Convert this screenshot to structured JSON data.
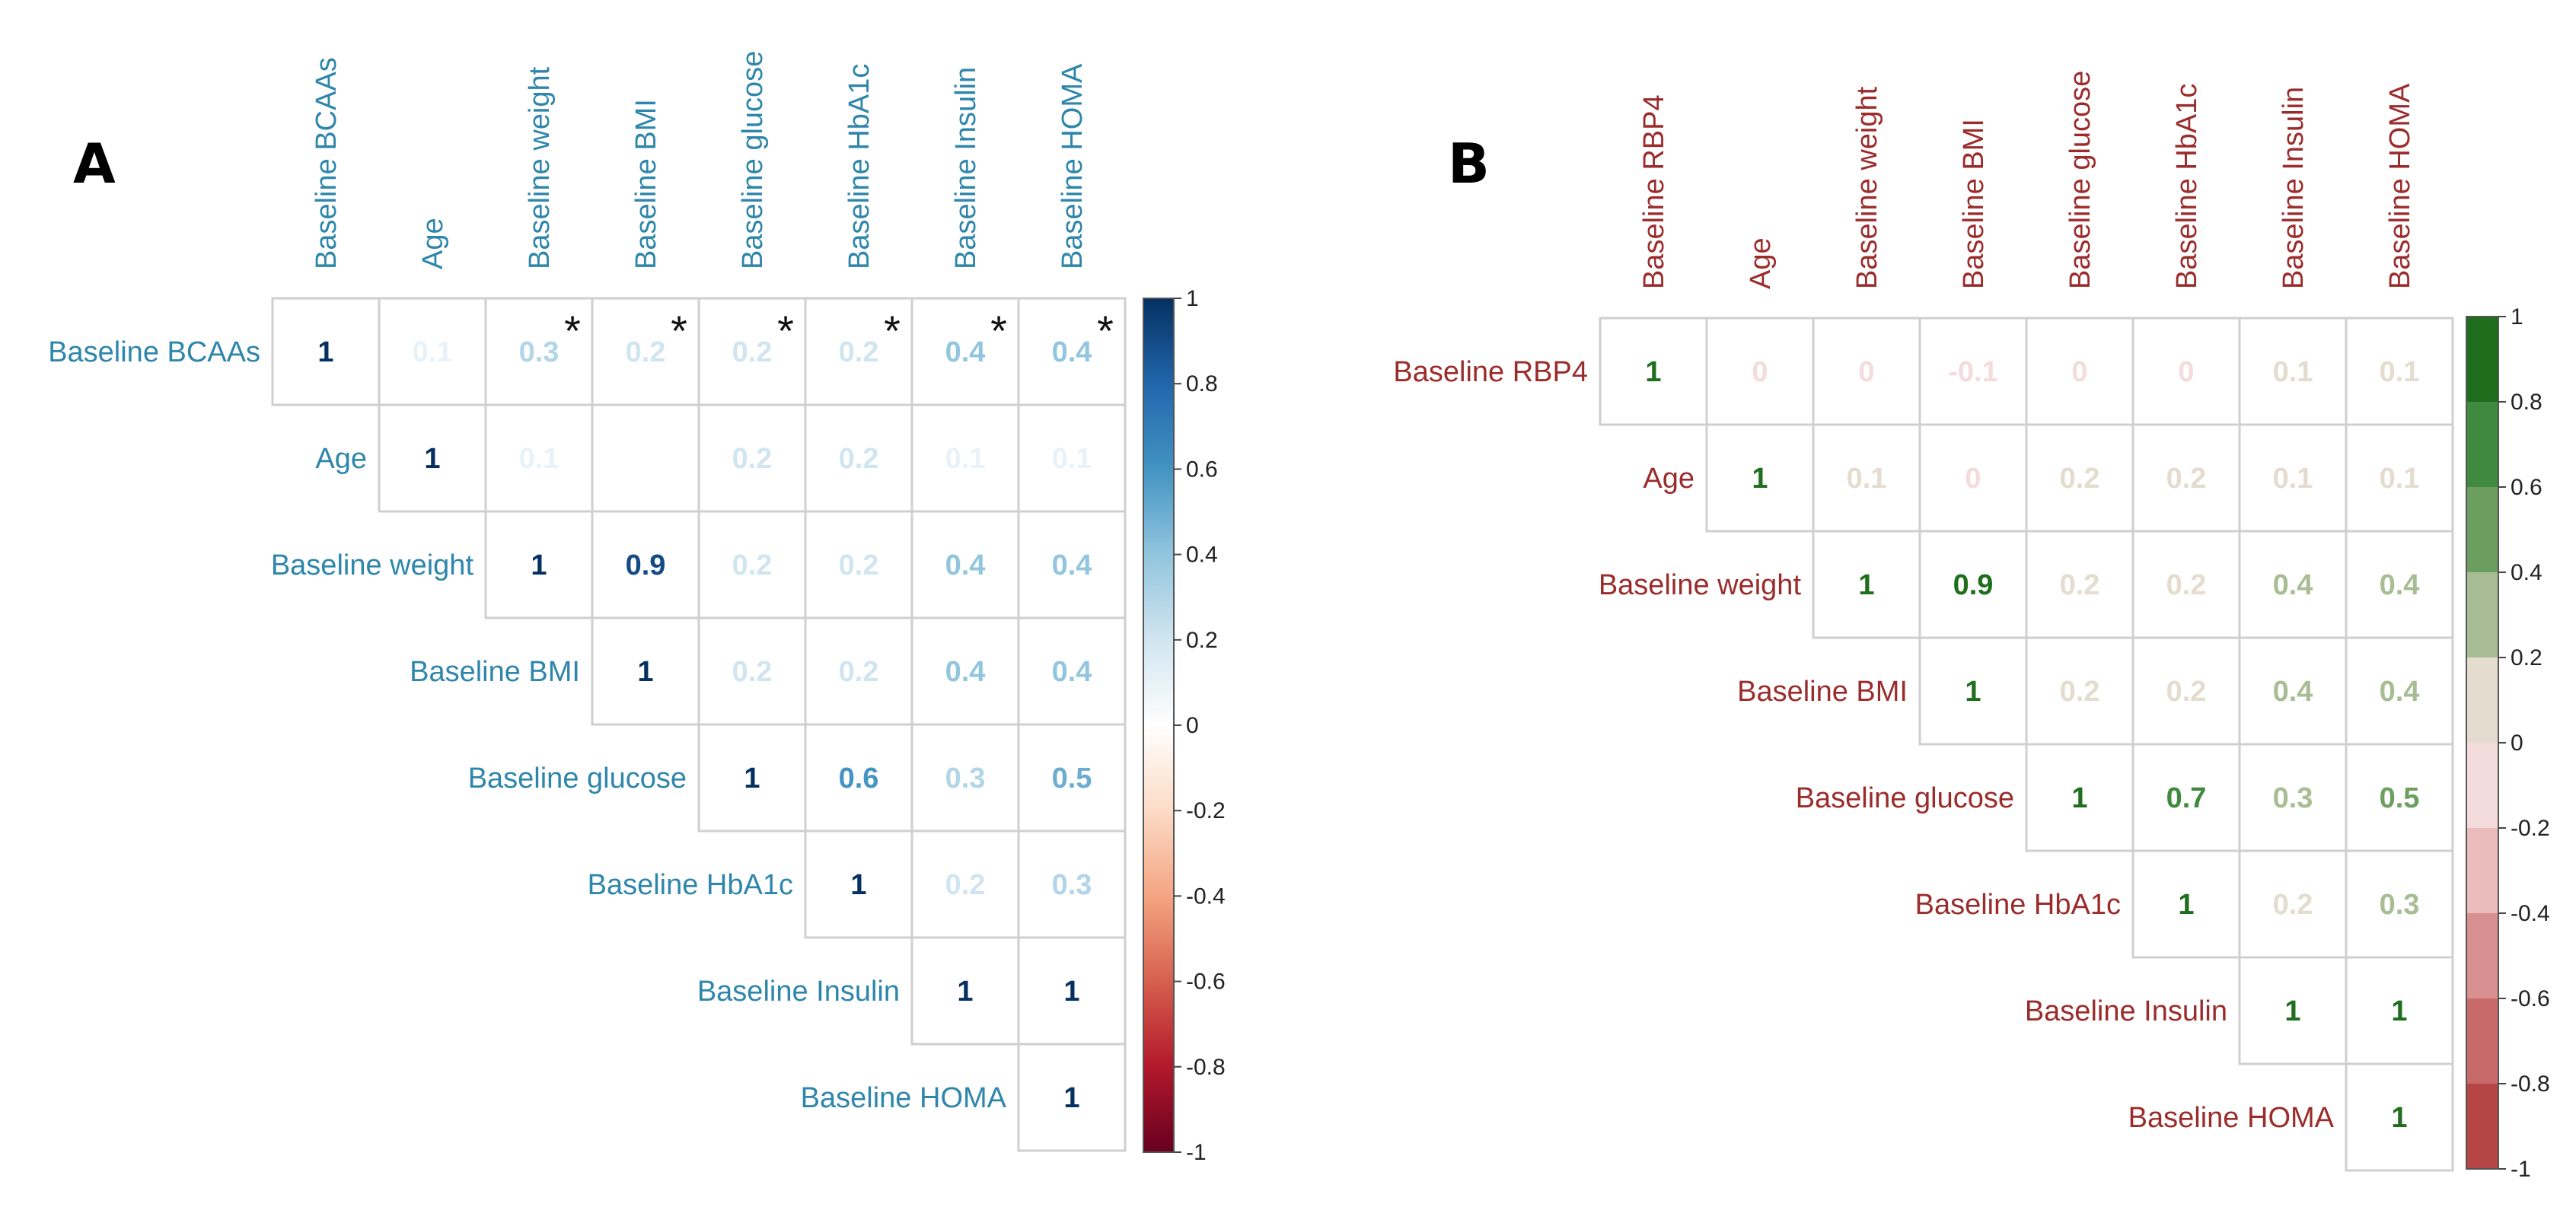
{
  "chart_data": [
    {
      "panel_label": "A",
      "type": "heatmap",
      "subtype": "correlation-matrix-upper-triangle",
      "palette": "blue-white-red",
      "label_color": "#2e86ab",
      "variables": [
        "Baseline BCAAs",
        "Age",
        "Baseline weight",
        "Baseline BMI",
        "Baseline glucose",
        "Baseline HbA1c",
        "Baseline Insulin",
        "Baseline HOMA"
      ],
      "values": [
        [
          1,
          0.1,
          0.3,
          0.2,
          0.2,
          0.2,
          0.4,
          0.4
        ],
        [
          null,
          1,
          0.1,
          0,
          0.2,
          0.2,
          0.1,
          0.1
        ],
        [
          null,
          null,
          1,
          0.9,
          0.2,
          0.2,
          0.4,
          0.4
        ],
        [
          null,
          null,
          null,
          1,
          0.2,
          0.2,
          0.4,
          0.4
        ],
        [
          null,
          null,
          null,
          null,
          1,
          0.6,
          0.3,
          0.5
        ],
        [
          null,
          null,
          null,
          null,
          null,
          1,
          0.2,
          0.3
        ],
        [
          null,
          null,
          null,
          null,
          null,
          null,
          1,
          1
        ],
        [
          null,
          null,
          null,
          null,
          null,
          null,
          null,
          1
        ]
      ],
      "labels": [
        [
          "1",
          "0.1",
          "0.3",
          "0.2",
          "0.2",
          "0.2",
          "0.4",
          "0.4"
        ],
        [
          "",
          "1",
          "0.1",
          "",
          "0.2",
          "0.2",
          "0.1",
          "0.1"
        ],
        [
          "",
          "",
          "1",
          "0.9",
          "0.2",
          "0.2",
          "0.4",
          "0.4"
        ],
        [
          "",
          "",
          "",
          "1",
          "0.2",
          "0.2",
          "0.4",
          "0.4"
        ],
        [
          "",
          "",
          "",
          "",
          "1",
          "0.6",
          "0.3",
          "0.5"
        ],
        [
          "",
          "",
          "",
          "",
          "",
          "1",
          "0.2",
          "0.3"
        ],
        [
          "",
          "",
          "",
          "",
          "",
          "",
          "1",
          "1"
        ],
        [
          "",
          "",
          "",
          "",
          "",
          "",
          "",
          "1"
        ]
      ],
      "significance": [
        {
          "row": 0,
          "col": 2,
          "mark": "*"
        },
        {
          "row": 0,
          "col": 3,
          "mark": "*"
        },
        {
          "row": 0,
          "col": 4,
          "mark": "*"
        },
        {
          "row": 0,
          "col": 5,
          "mark": "*"
        },
        {
          "row": 0,
          "col": 6,
          "mark": "*"
        },
        {
          "row": 0,
          "col": 7,
          "mark": "*"
        }
      ],
      "colorbar": {
        "type": "continuous",
        "range": [
          -1,
          1
        ],
        "ticks": [
          "1",
          "0.8",
          "0.6",
          "0.4",
          "0.2",
          "0",
          "-0.2",
          "-0.4",
          "-0.6",
          "-0.8",
          "-1"
        ],
        "stops": [
          "#053061",
          "#2166ac",
          "#4393c3",
          "#92c5de",
          "#d1e5f0",
          "#ffffff",
          "#fddbc7",
          "#f4a582",
          "#d6604d",
          "#b2182b",
          "#67001f"
        ]
      }
    },
    {
      "panel_label": "B",
      "type": "heatmap",
      "subtype": "correlation-matrix-upper-triangle",
      "palette": "green-white-red",
      "label_color": "#9b2c2c",
      "variables": [
        "Baseline RBP4",
        "Age",
        "Baseline weight",
        "Baseline BMI",
        "Baseline glucose",
        "Baseline HbA1c",
        "Baseline Insulin",
        "Baseline HOMA"
      ],
      "values": [
        [
          1,
          0,
          0,
          -0.1,
          0,
          0,
          0.1,
          0.1
        ],
        [
          null,
          1,
          0.1,
          0,
          0.2,
          0.2,
          0.1,
          0.1
        ],
        [
          null,
          null,
          1,
          0.9,
          0.2,
          0.2,
          0.4,
          0.4
        ],
        [
          null,
          null,
          null,
          1,
          0.2,
          0.2,
          0.4,
          0.4
        ],
        [
          null,
          null,
          null,
          null,
          1,
          0.7,
          0.3,
          0.5
        ],
        [
          null,
          null,
          null,
          null,
          null,
          1,
          0.2,
          0.3
        ],
        [
          null,
          null,
          null,
          null,
          null,
          null,
          1,
          1
        ],
        [
          null,
          null,
          null,
          null,
          null,
          null,
          null,
          1
        ]
      ],
      "labels": [
        [
          "1",
          "0",
          "0",
          "-0.1",
          "0",
          "0",
          "0.1",
          "0.1"
        ],
        [
          "",
          "1",
          "0.1",
          "0",
          "0.2",
          "0.2",
          "0.1",
          "0.1"
        ],
        [
          "",
          "",
          "1",
          "0.9",
          "0.2",
          "0.2",
          "0.4",
          "0.4"
        ],
        [
          "",
          "",
          "",
          "1",
          "0.2",
          "0.2",
          "0.4",
          "0.4"
        ],
        [
          "",
          "",
          "",
          "",
          "1",
          "0.7",
          "0.3",
          "0.5"
        ],
        [
          "",
          "",
          "",
          "",
          "",
          "1",
          "0.2",
          "0.3"
        ],
        [
          "",
          "",
          "",
          "",
          "",
          "",
          "1",
          "1"
        ],
        [
          "",
          "",
          "",
          "",
          "",
          "",
          "",
          "1"
        ]
      ],
      "significance": [],
      "colorbar": {
        "type": "stepped",
        "range": [
          -1,
          1
        ],
        "ticks": [
          "1",
          "0.8",
          "0.6",
          "0.4",
          "0.2",
          "0",
          "-0.2",
          "-0.4",
          "-0.6",
          "-0.8",
          "-1"
        ],
        "segments": [
          "#1e6e1e",
          "#3f8a3f",
          "#6c9e60",
          "#a8bd93",
          "#e3dccf",
          "#f5dcdc",
          "#ebbcbc",
          "#d99090",
          "#c96a6a",
          "#b64545"
        ]
      }
    }
  ]
}
